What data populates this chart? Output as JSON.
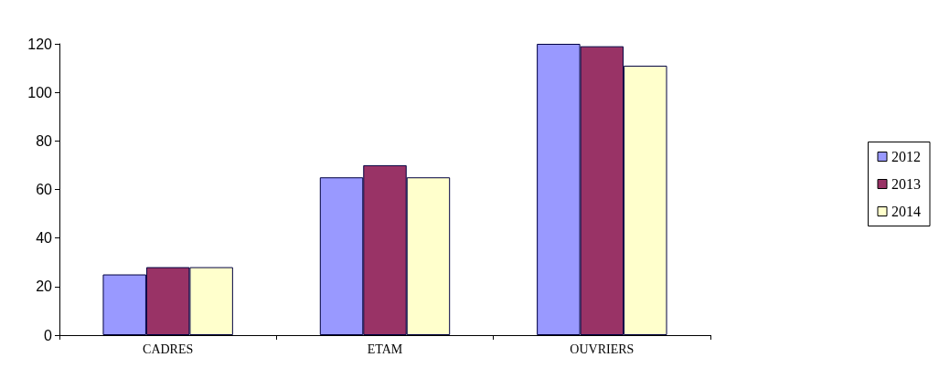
{
  "chart_data": {
    "type": "bar",
    "categories": [
      "CADRES",
      "ETAM",
      "OUVRIERS"
    ],
    "series": [
      {
        "name": "2012",
        "color": "#9999ff",
        "values": [
          25,
          65,
          120
        ]
      },
      {
        "name": "2013",
        "color": "#993366",
        "values": [
          28,
          70,
          119
        ]
      },
      {
        "name": "2014",
        "color": "#ffffcc",
        "values": [
          28,
          65,
          111
        ]
      }
    ],
    "ylim": [
      0,
      120
    ],
    "yticks": [
      0,
      20,
      40,
      60,
      80,
      100,
      120
    ],
    "grid": false,
    "legend": "right"
  }
}
